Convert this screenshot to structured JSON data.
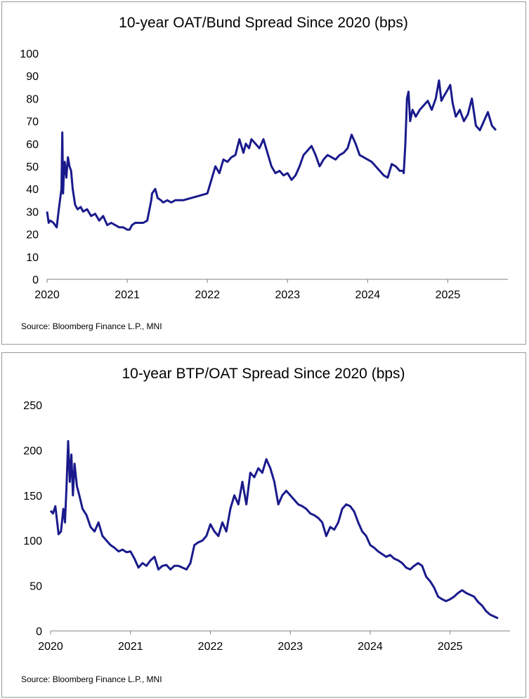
{
  "chart_data": [
    {
      "type": "line",
      "title": "10-year OAT/Bund Spread Since 2020 (bps)",
      "source": "Source: Bloomberg Finance L.P., MNI",
      "xlabel": "",
      "ylabel": "",
      "xlim": [
        2020.0,
        2025.75
      ],
      "ylim": [
        0,
        100
      ],
      "yticks": [
        "0",
        "10",
        "20",
        "30",
        "40",
        "50",
        "60",
        "70",
        "80",
        "90",
        "100"
      ],
      "xticks": [
        "2020",
        "2021",
        "2022",
        "2023",
        "2024",
        "2025"
      ],
      "grid": false,
      "legend": "none",
      "color": "#1a1a8c",
      "series": [
        {
          "x": [
            2020.0,
            2020.02,
            2020.04,
            2020.08,
            2020.12,
            2020.15,
            2020.18,
            2020.19,
            2020.2,
            2020.21,
            2020.22,
            2020.24,
            2020.26,
            2020.28,
            2020.3,
            2020.32,
            2020.35,
            2020.38,
            2020.42,
            2020.45,
            2020.5,
            2020.55,
            2020.6,
            2020.65,
            2020.7,
            2020.75,
            2020.8,
            2020.85,
            2020.9,
            2020.95,
            2021.0,
            2021.03,
            2021.06,
            2021.1,
            2021.15,
            2021.2,
            2021.25,
            2021.3,
            2021.31,
            2021.35,
            2021.38,
            2021.42,
            2021.45,
            2021.5,
            2021.55,
            2021.6,
            2021.7,
            2021.8,
            2021.9,
            2022.0,
            2022.05,
            2022.1,
            2022.15,
            2022.2,
            2022.25,
            2022.3,
            2022.35,
            2022.4,
            2022.45,
            2022.48,
            2022.52,
            2022.55,
            2022.6,
            2022.65,
            2022.7,
            2022.75,
            2022.8,
            2022.85,
            2022.9,
            2022.95,
            2023.0,
            2023.05,
            2023.1,
            2023.15,
            2023.2,
            2023.25,
            2023.3,
            2023.35,
            2023.4,
            2023.45,
            2023.5,
            2023.55,
            2023.6,
            2023.65,
            2023.7,
            2023.75,
            2023.8,
            2023.85,
            2023.9,
            2023.95,
            2024.0,
            2024.05,
            2024.1,
            2024.15,
            2024.2,
            2024.25,
            2024.3,
            2024.35,
            2024.4,
            2024.44,
            2024.45,
            2024.47,
            2024.49,
            2024.51,
            2024.53,
            2024.56,
            2024.6,
            2024.65,
            2024.7,
            2024.75,
            2024.8,
            2024.85,
            2024.89,
            2024.92,
            2024.95,
            2025.0,
            2025.03,
            2025.06,
            2025.1,
            2025.15,
            2025.2,
            2025.25,
            2025.3,
            2025.35,
            2025.4,
            2025.45,
            2025.5,
            2025.55,
            2025.6
          ],
          "values": [
            30,
            25,
            26,
            25,
            23,
            32,
            40,
            65,
            38,
            48,
            52,
            45,
            54,
            50,
            48,
            40,
            33,
            31,
            32,
            30,
            31,
            28,
            29,
            26,
            28,
            24,
            25,
            24,
            23,
            23,
            22,
            22,
            24,
            25,
            25,
            25,
            26,
            35,
            38,
            40,
            36,
            35,
            34,
            35,
            34,
            35,
            35,
            36,
            37,
            38,
            44,
            50,
            47,
            53,
            52,
            54,
            55,
            62,
            56,
            60,
            58,
            62,
            60,
            58,
            62,
            56,
            50,
            47,
            48,
            46,
            47,
            44,
            46,
            50,
            55,
            57,
            59,
            55,
            50,
            53,
            55,
            54,
            53,
            55,
            56,
            58,
            64,
            60,
            55,
            54,
            53,
            52,
            50,
            48,
            46,
            45,
            51,
            50,
            48,
            48,
            47,
            60,
            80,
            83,
            70,
            75,
            72,
            75,
            77,
            79,
            75,
            80,
            88,
            79,
            81,
            84,
            86,
            78,
            72,
            75,
            70,
            73,
            80,
            68,
            66,
            70,
            74,
            68,
            66
          ]
        }
      ]
    },
    {
      "type": "line",
      "title": "10-year BTP/OAT Spread Since 2020 (bps)",
      "source": "Source: Bloomberg Finance L.P., MNI",
      "xlabel": "",
      "ylabel": "",
      "xlim": [
        2020.0,
        2025.75
      ],
      "ylim": [
        0,
        250
      ],
      "yticks": [
        "0",
        "50",
        "100",
        "150",
        "200",
        "250"
      ],
      "xticks": [
        "2020",
        "2021",
        "2022",
        "2023",
        "2024",
        "2025"
      ],
      "grid": false,
      "legend": "none",
      "color": "#1a1a8c",
      "series": [
        {
          "x": [
            2020.0,
            2020.03,
            2020.06,
            2020.1,
            2020.13,
            2020.16,
            2020.18,
            2020.2,
            2020.22,
            2020.24,
            2020.26,
            2020.28,
            2020.3,
            2020.33,
            2020.36,
            2020.4,
            2020.45,
            2020.5,
            2020.55,
            2020.6,
            2020.65,
            2020.7,
            2020.75,
            2020.8,
            2020.85,
            2020.9,
            2020.95,
            2021.0,
            2021.05,
            2021.1,
            2021.15,
            2021.2,
            2021.25,
            2021.3,
            2021.35,
            2021.4,
            2021.45,
            2021.5,
            2021.55,
            2021.6,
            2021.65,
            2021.7,
            2021.75,
            2021.8,
            2021.85,
            2021.9,
            2021.95,
            2022.0,
            2022.05,
            2022.1,
            2022.15,
            2022.2,
            2022.25,
            2022.3,
            2022.35,
            2022.4,
            2022.45,
            2022.5,
            2022.55,
            2022.6,
            2022.65,
            2022.7,
            2022.75,
            2022.8,
            2022.85,
            2022.9,
            2022.95,
            2023.0,
            2023.05,
            2023.1,
            2023.15,
            2023.2,
            2023.25,
            2023.3,
            2023.35,
            2023.4,
            2023.45,
            2023.5,
            2023.55,
            2023.6,
            2023.65,
            2023.7,
            2023.75,
            2023.8,
            2023.85,
            2023.9,
            2023.95,
            2024.0,
            2024.05,
            2024.1,
            2024.15,
            2024.2,
            2024.25,
            2024.3,
            2024.35,
            2024.4,
            2024.45,
            2024.5,
            2024.55,
            2024.6,
            2024.65,
            2024.7,
            2024.75,
            2024.8,
            2024.85,
            2024.9,
            2024.95,
            2025.0,
            2025.05,
            2025.1,
            2025.15,
            2025.2,
            2025.25,
            2025.3,
            2025.35,
            2025.4,
            2025.45,
            2025.5,
            2025.55,
            2025.6
          ],
          "values": [
            133,
            130,
            138,
            107,
            110,
            135,
            120,
            160,
            210,
            165,
            195,
            150,
            185,
            160,
            150,
            135,
            128,
            115,
            110,
            120,
            105,
            100,
            95,
            92,
            88,
            90,
            87,
            88,
            80,
            70,
            75,
            72,
            78,
            82,
            68,
            72,
            73,
            68,
            72,
            72,
            70,
            68,
            75,
            95,
            98,
            100,
            105,
            118,
            110,
            105,
            120,
            110,
            135,
            150,
            140,
            165,
            140,
            175,
            170,
            180,
            175,
            190,
            180,
            165,
            140,
            150,
            155,
            150,
            145,
            140,
            138,
            135,
            130,
            128,
            125,
            120,
            105,
            115,
            112,
            120,
            135,
            140,
            138,
            132,
            120,
            110,
            105,
            95,
            92,
            88,
            85,
            82,
            84,
            80,
            78,
            75,
            70,
            68,
            72,
            75,
            72,
            60,
            55,
            48,
            38,
            35,
            33,
            35,
            38,
            42,
            45,
            42,
            40,
            38,
            32,
            28,
            22,
            18,
            16,
            14
          ]
        }
      ]
    }
  ]
}
